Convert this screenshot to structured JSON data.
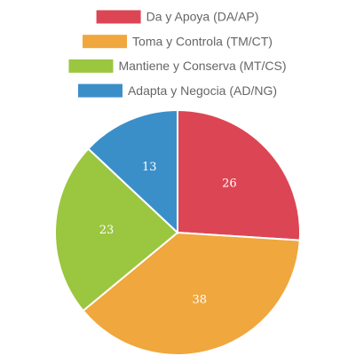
{
  "chart_data": {
    "type": "pie",
    "categories": [
      "Da y Apoya (DA/AP)",
      "Toma y Controla (TM/CT)",
      "Mantiene y Conserva (MT/CS)",
      "Adapta y Negocia (AD/NG)"
    ],
    "values": [
      26,
      38,
      23,
      13
    ],
    "colors": [
      "#dc4654",
      "#f0a73d",
      "#9bc640",
      "#3a8fc9"
    ],
    "legend": "top"
  }
}
